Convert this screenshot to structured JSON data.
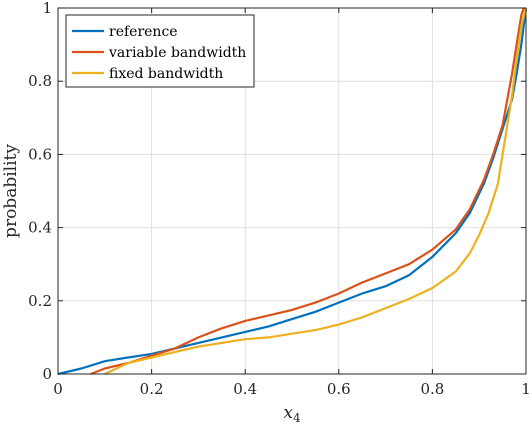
{
  "chart_data": {
    "type": "line",
    "title": "",
    "xlabel_base": "x",
    "xlabel_sub": "4",
    "ylabel": "probability",
    "xlim": [
      0,
      1
    ],
    "ylim": [
      0,
      1
    ],
    "xticks": [
      0,
      0.2,
      0.4,
      0.6,
      0.8,
      1
    ],
    "yticks": [
      0,
      0.2,
      0.4,
      0.6,
      0.8,
      1
    ],
    "xtick_labels": [
      "0",
      "0.2",
      "0.4",
      "0.6",
      "0.8",
      "1"
    ],
    "ytick_labels": [
      "0",
      "0.2",
      "0.4",
      "0.6",
      "0.8",
      "1"
    ],
    "grid": true,
    "legend_position": "top-left",
    "series": [
      {
        "name": "reference",
        "color": "#0072BD",
        "points": [
          [
            0,
            0
          ],
          [
            0.05,
            0.015
          ],
          [
            0.1,
            0.035
          ],
          [
            0.15,
            0.045
          ],
          [
            0.2,
            0.055
          ],
          [
            0.25,
            0.07
          ],
          [
            0.3,
            0.085
          ],
          [
            0.35,
            0.1
          ],
          [
            0.4,
            0.115
          ],
          [
            0.45,
            0.13
          ],
          [
            0.5,
            0.15
          ],
          [
            0.55,
            0.17
          ],
          [
            0.6,
            0.195
          ],
          [
            0.65,
            0.22
          ],
          [
            0.7,
            0.24
          ],
          [
            0.75,
            0.27
          ],
          [
            0.8,
            0.32
          ],
          [
            0.85,
            0.385
          ],
          [
            0.88,
            0.44
          ],
          [
            0.91,
            0.52
          ],
          [
            0.93,
            0.59
          ],
          [
            0.95,
            0.67
          ],
          [
            0.97,
            0.75
          ],
          [
            0.98,
            0.82
          ],
          [
            0.99,
            0.9
          ],
          [
            1.0,
            1.0
          ]
        ]
      },
      {
        "name": "variable bandwidth",
        "color": "#D95319",
        "points": [
          [
            0.07,
            0
          ],
          [
            0.1,
            0.015
          ],
          [
            0.15,
            0.03
          ],
          [
            0.2,
            0.05
          ],
          [
            0.25,
            0.07
          ],
          [
            0.3,
            0.1
          ],
          [
            0.35,
            0.125
          ],
          [
            0.4,
            0.145
          ],
          [
            0.45,
            0.16
          ],
          [
            0.5,
            0.175
          ],
          [
            0.55,
            0.195
          ],
          [
            0.6,
            0.22
          ],
          [
            0.65,
            0.25
          ],
          [
            0.7,
            0.275
          ],
          [
            0.75,
            0.3
          ],
          [
            0.8,
            0.34
          ],
          [
            0.85,
            0.395
          ],
          [
            0.88,
            0.45
          ],
          [
            0.91,
            0.53
          ],
          [
            0.93,
            0.6
          ],
          [
            0.95,
            0.68
          ],
          [
            0.96,
            0.75
          ],
          [
            0.97,
            0.82
          ],
          [
            0.98,
            0.9
          ],
          [
            0.99,
            0.98
          ],
          [
            0.995,
            1.0
          ]
        ]
      },
      {
        "name": "fixed bandwidth",
        "color": "#EDB120",
        "points": [
          [
            0.1,
            0
          ],
          [
            0.15,
            0.03
          ],
          [
            0.2,
            0.045
          ],
          [
            0.25,
            0.06
          ],
          [
            0.3,
            0.075
          ],
          [
            0.35,
            0.085
          ],
          [
            0.4,
            0.095
          ],
          [
            0.45,
            0.1
          ],
          [
            0.5,
            0.11
          ],
          [
            0.55,
            0.12
          ],
          [
            0.6,
            0.135
          ],
          [
            0.65,
            0.155
          ],
          [
            0.7,
            0.18
          ],
          [
            0.75,
            0.205
          ],
          [
            0.8,
            0.235
          ],
          [
            0.85,
            0.28
          ],
          [
            0.88,
            0.33
          ],
          [
            0.9,
            0.38
          ],
          [
            0.92,
            0.44
          ],
          [
            0.94,
            0.52
          ],
          [
            0.95,
            0.6
          ],
          [
            0.96,
            0.68
          ],
          [
            0.97,
            0.76
          ],
          [
            0.98,
            0.86
          ],
          [
            0.99,
            0.95
          ],
          [
            1.0,
            1.0
          ]
        ]
      }
    ]
  }
}
